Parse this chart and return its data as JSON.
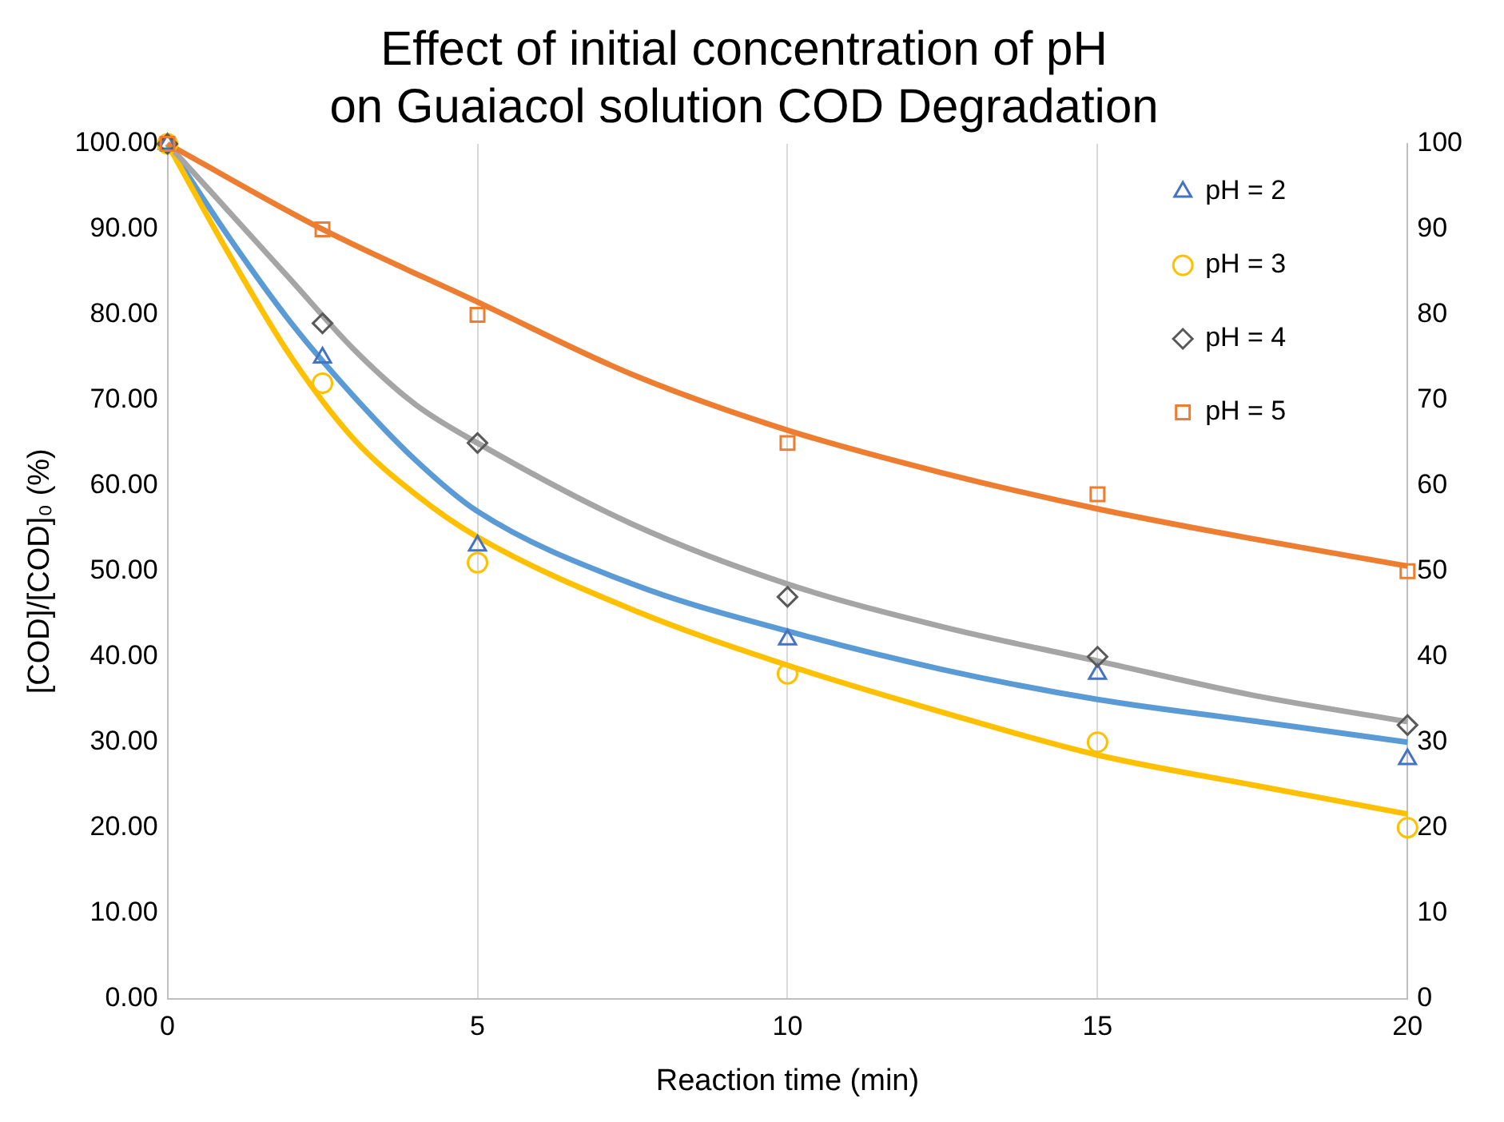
{
  "chart_data": {
    "type": "scatter",
    "title": "Effect of initial concentration of pH on Guaiacol solution COD Degradation",
    "xlabel": "Reaction time (min)",
    "ylabel": "[COD]/[COD]₀ (%)",
    "xlim": [
      0,
      20
    ],
    "xticks": [
      0,
      5,
      10,
      15,
      20
    ],
    "ylim": [
      0,
      100
    ],
    "yticks": [
      {
        "value": 0,
        "label": "0.00"
      },
      {
        "value": 10,
        "label": "10.00"
      },
      {
        "value": 20,
        "label": "20.00"
      },
      {
        "value": 30,
        "label": "30.00"
      },
      {
        "value": 40,
        "label": "40.00"
      },
      {
        "value": 50,
        "label": "50.00"
      },
      {
        "value": 60,
        "label": "60.00"
      },
      {
        "value": 70,
        "label": "70.00"
      },
      {
        "value": 80,
        "label": "80.00"
      },
      {
        "value": 90,
        "label": "90.00"
      },
      {
        "value": 100,
        "label": "100.00"
      }
    ],
    "y2lim": [
      0,
      100
    ],
    "y2ticks": [
      0,
      10,
      20,
      30,
      40,
      50,
      60,
      70,
      80,
      90,
      100
    ],
    "grid": "x",
    "legend": "top right",
    "series": [
      {
        "type": "line",
        "color": "#5b9bd5",
        "marker": "none",
        "x": [
          0,
          1,
          2,
          3,
          4,
          5,
          7.5,
          10,
          12.5,
          15,
          17.5,
          20
        ],
        "values": [
          100,
          89,
          79,
          70.5,
          63,
          57,
          48.5,
          43,
          38.5,
          35,
          32.5,
          30
        ]
      },
      {
        "type": "line",
        "color": "#ffc000",
        "marker": "none",
        "x": [
          0,
          1,
          2,
          3,
          4,
          5,
          7.5,
          10,
          12.5,
          15,
          17.5,
          20
        ],
        "values": [
          100,
          87,
          75,
          65.5,
          59,
          54,
          45.5,
          39,
          33.5,
          28.5,
          25,
          21.6
        ]
      },
      {
        "type": "line",
        "color": "#a5a5a5",
        "marker": "none",
        "x": [
          0,
          1,
          2,
          3,
          4,
          5,
          7.5,
          10,
          12.5,
          15,
          17.5,
          20
        ],
        "values": [
          100,
          92,
          84,
          76,
          69.5,
          65,
          55.5,
          48.5,
          43.5,
          39.5,
          35.5,
          32.4
        ]
      },
      {
        "type": "line",
        "color": "#ed7d31",
        "marker": "none",
        "x": [
          0,
          2.5,
          5,
          7.5,
          10,
          12.5,
          15,
          17.5,
          20
        ],
        "values": [
          100,
          90,
          81.5,
          73,
          66.5,
          61.5,
          57.3,
          53.8,
          50.6
        ]
      },
      {
        "name": "pH = 2",
        "color": "#4472c4",
        "marker": "triangle",
        "x": [
          0,
          2.5,
          5,
          10,
          15,
          20
        ],
        "values": [
          100,
          75,
          53,
          42,
          38,
          28
        ]
      },
      {
        "name": "pH = 3",
        "color": "#ffc000",
        "marker": "circle",
        "x": [
          0,
          2.5,
          5,
          10,
          15,
          20
        ],
        "values": [
          100,
          72,
          51,
          38,
          30,
          20
        ]
      },
      {
        "name": "pH = 4",
        "color": "#595959",
        "marker": "diamond",
        "x": [
          0,
          2.5,
          5,
          10,
          15,
          20
        ],
        "values": [
          100,
          79,
          65,
          47,
          40,
          32
        ]
      },
      {
        "name": "pH = 5",
        "color": "#ed7d31",
        "marker": "square",
        "x": [
          0,
          2.5,
          5,
          10,
          15,
          20
        ],
        "values": [
          100,
          90,
          80,
          65,
          59,
          50
        ]
      }
    ]
  }
}
